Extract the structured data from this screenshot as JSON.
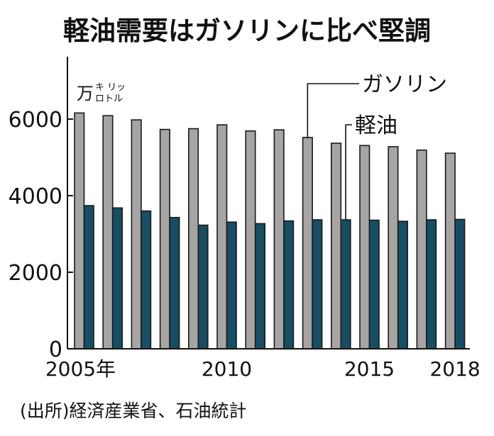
{
  "chart_data": {
    "type": "bar",
    "title": "軽油需要はガソリンに比べ堅調",
    "unit_label": {
      "main": "万",
      "top": "キ リッ",
      "bottom": "ロトル"
    },
    "source": "(出所)経済産業省、石油統計",
    "categories": [
      "2005",
      "2006",
      "2007",
      "2008",
      "2009",
      "2010",
      "2011",
      "2012",
      "2013",
      "2014",
      "2015",
      "2016",
      "2017",
      "2018"
    ],
    "x_tick_labels": [
      {
        "category": "2005",
        "label": "2005年"
      },
      {
        "category": "2010",
        "label": "2010"
      },
      {
        "category": "2015",
        "label": "2015"
      },
      {
        "category": "2018",
        "label": "2018"
      }
    ],
    "y_ticks": [
      "0",
      "2000",
      "4000",
      "6000"
    ],
    "ylim": [
      0,
      6000
    ],
    "grid": false,
    "series": [
      {
        "name": "ガソリン",
        "color": "#a6a5a3",
        "values": [
          6160,
          6090,
          5980,
          5730,
          5750,
          5850,
          5690,
          5720,
          5520,
          5370,
          5310,
          5280,
          5190,
          5110
        ],
        "label_points_to": "2013"
      },
      {
        "name": "軽油",
        "color": "#174e63",
        "values": [
          3740,
          3680,
          3600,
          3430,
          3230,
          3310,
          3270,
          3340,
          3370,
          3370,
          3360,
          3330,
          3370,
          3380
        ],
        "label_points_to": "2014"
      }
    ]
  }
}
